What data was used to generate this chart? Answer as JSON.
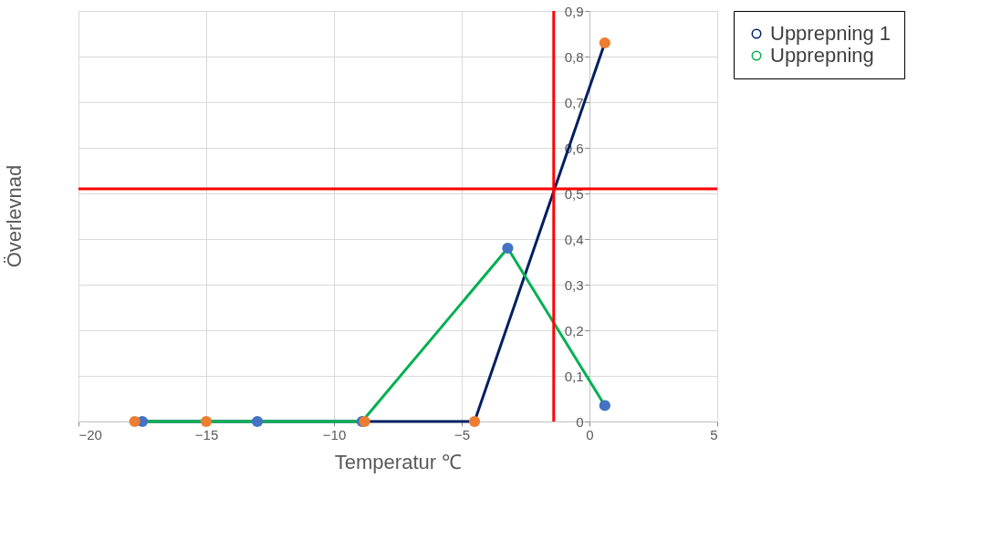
{
  "chart_data": {
    "type": "line",
    "xlabel": "Temperatur ℃",
    "ylabel": "Överlevnad",
    "xlim": [
      -20,
      5
    ],
    "xticks": [
      -20,
      -15,
      -10,
      -5,
      0,
      5
    ],
    "ylim": [
      0,
      0.9
    ],
    "yticks": [
      {
        "value": 0,
        "label": "0"
      },
      {
        "value": 0.1,
        "label": "0,1"
      },
      {
        "value": 0.2,
        "label": "0,2"
      },
      {
        "value": 0.3,
        "label": "0,3"
      },
      {
        "value": 0.4,
        "label": "0,4"
      },
      {
        "value": 0.5,
        "label": "0,5"
      },
      {
        "value": 0.6,
        "label": "0,6"
      },
      {
        "value": 0.7,
        "label": "0,7"
      },
      {
        "value": 0.8,
        "label": "0,8"
      },
      {
        "value": 0.9,
        "label": "0,9"
      }
    ],
    "grid": true,
    "legend": "right",
    "marker": "none",
    "line_style": "solid",
    "series": [
      {
        "name": "Upprepning 1",
        "color": "#002060",
        "x": [
          -17.8,
          -15,
          -8.8,
          -4.5,
          0.6
        ],
        "values": [
          0,
          0,
          0,
          0,
          0.83
        ]
      },
      {
        "name": "Upprepning",
        "color": "#00b050",
        "x": [
          -17.5,
          -13,
          -8.9,
          -3.2,
          0.6
        ],
        "values": [
          0,
          0,
          0,
          0.38,
          0.035
        ]
      },
      {
        "type": "scatter",
        "color": "#4472c4",
        "marker": "circle",
        "x": [
          -17.5,
          -13,
          -8.9,
          -3.2,
          0.6
        ],
        "values": [
          0,
          0,
          0,
          0.38,
          0.035
        ]
      },
      {
        "type": "scatter",
        "color": "#ed7d31",
        "marker": "circle",
        "x": [
          -17.8,
          -15,
          -8.8,
          -4.5,
          0.6
        ],
        "values": [
          0,
          0,
          0,
          0,
          0.83
        ]
      }
    ],
    "ref_lines": [
      {
        "axis": "y",
        "value": 0.51,
        "color": "#ff0000"
      },
      {
        "axis": "x",
        "value": -1.4,
        "color": "#ff0000"
      }
    ]
  }
}
